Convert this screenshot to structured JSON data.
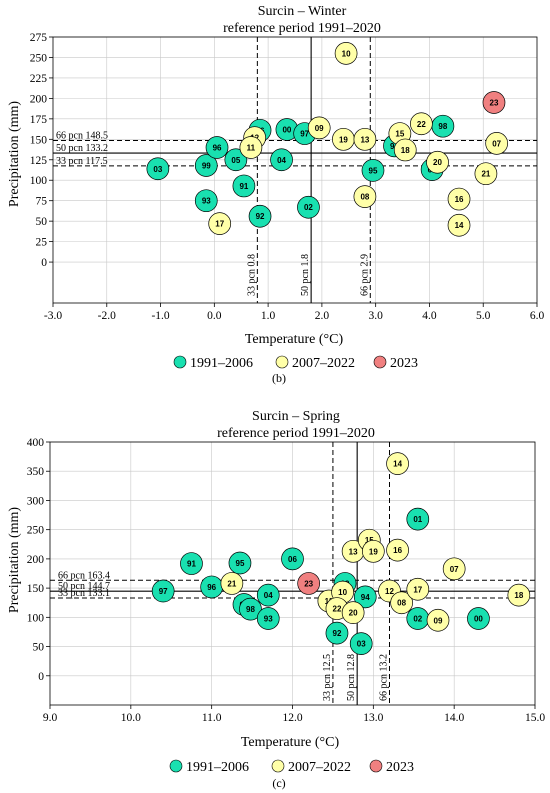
{
  "colors": {
    "g1": "#19e0b0",
    "g2": "#ffffa8",
    "g3": "#f08080",
    "stroke": "#000000",
    "grid": "#c8c8c8"
  },
  "legend": {
    "g1": "1991–2006",
    "g2": "2007–2022",
    "g3": "2023"
  },
  "chart_data": [
    {
      "type": "scatter",
      "title": "Surcin – Winter",
      "subtitle": "reference period 1991–2020",
      "xlabel": "Temperature  (°C)",
      "ylabel": "Precipitation  (mm)",
      "caption": "(b)",
      "xlim": [
        -3,
        6
      ],
      "ylim": [
        -50,
        275
      ],
      "xticks": [
        -3,
        -2,
        -1,
        0,
        1,
        2,
        3,
        4,
        5,
        6
      ],
      "xtick_labels": [
        "-3.0",
        "-2.0",
        "-1.0",
        "0.0",
        "1.0",
        "2.0",
        "3.0",
        "4.0",
        "5.0",
        "6.0"
      ],
      "yticks": [
        0,
        25,
        50,
        75,
        100,
        125,
        150,
        175,
        200,
        225,
        250,
        275
      ],
      "grid": true,
      "ref_h": [
        {
          "label": "66  pcn  148.5",
          "value": 148.5,
          "style": "dashed"
        },
        {
          "label": "50  pcn  133.2",
          "value": 133.2,
          "style": "solid"
        },
        {
          "label": "33  pcn  117.5",
          "value": 117.5,
          "style": "dashed"
        }
      ],
      "ref_v": [
        {
          "label": "33  pcn  0.8",
          "value": 0.8,
          "style": "dashed"
        },
        {
          "label": "50  pcn  1.8",
          "value": 1.8,
          "style": "solid"
        },
        {
          "label": "66  pcn  2.9",
          "value": 2.9,
          "style": "dashed"
        }
      ],
      "points": [
        {
          "label": "03",
          "x": -1.05,
          "y": 114,
          "group": "g1"
        },
        {
          "label": "99",
          "x": -0.15,
          "y": 118,
          "group": "g1"
        },
        {
          "label": "96",
          "x": 0.05,
          "y": 140,
          "group": "g1"
        },
        {
          "label": "05",
          "x": 0.4,
          "y": 125,
          "group": "g1"
        },
        {
          "label": "93",
          "x": -0.15,
          "y": 75,
          "group": "g1"
        },
        {
          "label": "91",
          "x": 0.55,
          "y": 93,
          "group": "g1"
        },
        {
          "label": "92",
          "x": 0.85,
          "y": 56,
          "group": "g1"
        },
        {
          "label": "04",
          "x": 1.25,
          "y": 125,
          "group": "g1"
        },
        {
          "label": "06",
          "x": 0.85,
          "y": 161,
          "group": "g1"
        },
        {
          "label": "00",
          "x": 1.35,
          "y": 162,
          "group": "g1"
        },
        {
          "label": "97",
          "x": 1.68,
          "y": 157,
          "group": "g1"
        },
        {
          "label": "02",
          "x": 1.75,
          "y": 67,
          "group": "g1"
        },
        {
          "label": "94",
          "x": 3.35,
          "y": 142,
          "group": "g1"
        },
        {
          "label": "95",
          "x": 2.95,
          "y": 112,
          "group": "g1"
        },
        {
          "label": "98",
          "x": 4.25,
          "y": 166,
          "group": "g1"
        },
        {
          "label": "01",
          "x": 4.05,
          "y": 113,
          "group": "g1"
        },
        {
          "label": "12",
          "x": 0.75,
          "y": 152,
          "group": "g2"
        },
        {
          "label": "11",
          "x": 0.68,
          "y": 140,
          "group": "g2"
        },
        {
          "label": "17",
          "x": 0.1,
          "y": 47,
          "group": "g2"
        },
        {
          "label": "09",
          "x": 1.95,
          "y": 164,
          "group": "g2"
        },
        {
          "label": "10",
          "x": 2.45,
          "y": 255,
          "group": "g2"
        },
        {
          "label": "19",
          "x": 2.4,
          "y": 150,
          "group": "g2"
        },
        {
          "label": "13",
          "x": 2.8,
          "y": 150,
          "group": "g2"
        },
        {
          "label": "08",
          "x": 2.8,
          "y": 80,
          "group": "g2"
        },
        {
          "label": "15",
          "x": 3.45,
          "y": 157,
          "group": "g2"
        },
        {
          "label": "18",
          "x": 3.55,
          "y": 137,
          "group": "g2"
        },
        {
          "label": "22",
          "x": 3.85,
          "y": 169,
          "group": "g2"
        },
        {
          "label": "20",
          "x": 4.15,
          "y": 122,
          "group": "g2"
        },
        {
          "label": "21",
          "x": 5.05,
          "y": 108,
          "group": "g2"
        },
        {
          "label": "16",
          "x": 4.55,
          "y": 77,
          "group": "g2"
        },
        {
          "label": "14",
          "x": 4.55,
          "y": 45,
          "group": "g2"
        },
        {
          "label": "07",
          "x": 5.25,
          "y": 145,
          "group": "g2"
        },
        {
          "label": "23",
          "x": 5.2,
          "y": 195,
          "group": "g3"
        }
      ]
    },
    {
      "type": "scatter",
      "title": "Surcin – Spring",
      "subtitle": "reference period 1991–2020",
      "xlabel": "Temperature  (°C)",
      "ylabel": "Precipitation  (mm)",
      "caption": "(c)",
      "xlim": [
        9,
        15
      ],
      "ylim": [
        -50,
        400
      ],
      "xticks": [
        9,
        10,
        11,
        12,
        13,
        14,
        15
      ],
      "xtick_labels": [
        "9.0",
        "10.0",
        "11.0",
        "12.0",
        "13.0",
        "14.0",
        "15.0"
      ],
      "yticks": [
        0,
        50,
        100,
        150,
        200,
        250,
        300,
        350,
        400
      ],
      "grid": true,
      "ref_h": [
        {
          "label": "66  pcn  163.4",
          "value": 163.4,
          "style": "dashed"
        },
        {
          "label": "50  pcn  144.7",
          "value": 144.7,
          "style": "solid"
        },
        {
          "label": "33  pcn  133.1",
          "value": 133.1,
          "style": "dashed"
        }
      ],
      "ref_v": [
        {
          "label": "33  pcn  12.5",
          "value": 12.5,
          "style": "dashed"
        },
        {
          "label": "50  pcn  12.8",
          "value": 12.8,
          "style": "solid"
        },
        {
          "label": "66  pcn  13.2",
          "value": 13.2,
          "style": "dashed"
        }
      ],
      "points": [
        {
          "label": "97",
          "x": 10.4,
          "y": 145,
          "group": "g1"
        },
        {
          "label": "91",
          "x": 10.75,
          "y": 192,
          "group": "g1"
        },
        {
          "label": "96",
          "x": 11.0,
          "y": 152,
          "group": "g1"
        },
        {
          "label": "95",
          "x": 11.35,
          "y": 193,
          "group": "g1"
        },
        {
          "label": "05",
          "x": 11.4,
          "y": 122,
          "group": "g1"
        },
        {
          "label": "98",
          "x": 11.48,
          "y": 114,
          "group": "g1"
        },
        {
          "label": "04",
          "x": 11.7,
          "y": 138,
          "group": "g1"
        },
        {
          "label": "93",
          "x": 11.7,
          "y": 98,
          "group": "g1"
        },
        {
          "label": "06",
          "x": 12.0,
          "y": 200,
          "group": "g1"
        },
        {
          "label": "99",
          "x": 12.65,
          "y": 158,
          "group": "g1"
        },
        {
          "label": "92",
          "x": 12.55,
          "y": 73,
          "group": "g1"
        },
        {
          "label": "03",
          "x": 12.85,
          "y": 55,
          "group": "g1"
        },
        {
          "label": "94",
          "x": 12.9,
          "y": 135,
          "group": "g1"
        },
        {
          "label": "01",
          "x": 13.55,
          "y": 268,
          "group": "g1"
        },
        {
          "label": "02",
          "x": 13.55,
          "y": 98,
          "group": "g1"
        },
        {
          "label": "00",
          "x": 14.3,
          "y": 98,
          "group": "g1"
        },
        {
          "label": "21",
          "x": 11.25,
          "y": 158,
          "group": "g2"
        },
        {
          "label": "11",
          "x": 12.45,
          "y": 128,
          "group": "g2"
        },
        {
          "label": "10",
          "x": 12.62,
          "y": 143,
          "group": "g2"
        },
        {
          "label": "22",
          "x": 12.55,
          "y": 115,
          "group": "g2"
        },
        {
          "label": "20",
          "x": 12.75,
          "y": 108,
          "group": "g2"
        },
        {
          "label": "13",
          "x": 12.75,
          "y": 213,
          "group": "g2"
        },
        {
          "label": "15",
          "x": 12.95,
          "y": 232,
          "group": "g2"
        },
        {
          "label": "19",
          "x": 13.0,
          "y": 213,
          "group": "g2"
        },
        {
          "label": "14",
          "x": 13.3,
          "y": 363,
          "group": "g2"
        },
        {
          "label": "16",
          "x": 13.3,
          "y": 215,
          "group": "g2"
        },
        {
          "label": "12",
          "x": 13.2,
          "y": 145,
          "group": "g2"
        },
        {
          "label": "08",
          "x": 13.35,
          "y": 125,
          "group": "g2"
        },
        {
          "label": "17",
          "x": 13.55,
          "y": 148,
          "group": "g2"
        },
        {
          "label": "09",
          "x": 13.8,
          "y": 95,
          "group": "g2"
        },
        {
          "label": "07",
          "x": 14.0,
          "y": 183,
          "group": "g2"
        },
        {
          "label": "18",
          "x": 14.8,
          "y": 138,
          "group": "g2"
        },
        {
          "label": "23",
          "x": 12.2,
          "y": 158,
          "group": "g3"
        }
      ]
    }
  ]
}
